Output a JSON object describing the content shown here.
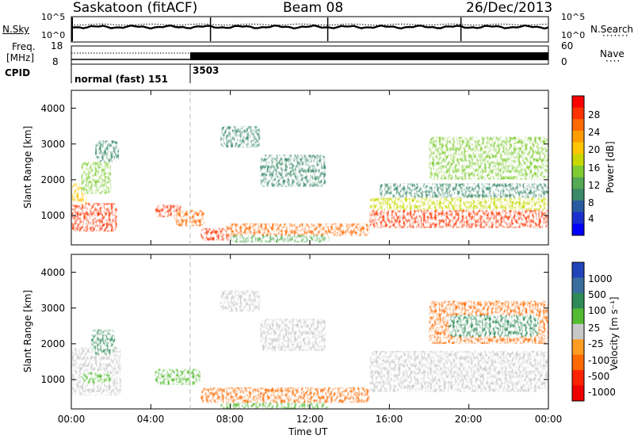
{
  "header": {
    "station": "Saskatoon (fitACF)",
    "beam": "Beam 08",
    "date": "26/Dec/2013"
  },
  "noise_panel": {
    "left_label": "N.Sky",
    "left_ticks": [
      "10^5",
      "10^0"
    ],
    "right_label": "N.Search",
    "right_ticks": [
      "10^5",
      "10^0"
    ]
  },
  "freq_panel": {
    "left_label_1": "Freq.",
    "left_label_2": "[MHz]",
    "left_ticks": [
      "18",
      "8"
    ],
    "right_label": "Nave",
    "right_ticks": [
      "60",
      "0"
    ]
  },
  "cpid": {
    "label": "CPID",
    "segments": [
      {
        "name": "normal (fast) 151",
        "start_hour": 0,
        "end_hour": 6
      },
      {
        "name": "3503",
        "start_hour": 6,
        "end_hour": 24
      }
    ]
  },
  "power_colorbar": {
    "label": "Power [dB]",
    "tick_labels": [
      "28",
      "24",
      "20",
      "16",
      "12",
      "8",
      "4"
    ],
    "colors": [
      "#ff0000",
      "#ff3300",
      "#ff6a00",
      "#ff9d00",
      "#ffc600",
      "#c8d800",
      "#7fcc33",
      "#55aa55",
      "#3a8a6a",
      "#2a5aa0",
      "#1a2fd0",
      "#0000ff"
    ]
  },
  "velocity_colorbar": {
    "label": "Velocity [m s⁻¹]",
    "tick_labels": [
      "1000",
      "500",
      "100",
      "25",
      "-25",
      "-100",
      "-500",
      "-1000"
    ],
    "colors": [
      "#2244bb",
      "#3a6e9e",
      "#2e8b57",
      "#55bb33",
      "#c8c8c8",
      "#ff9c22",
      "#ff6a00",
      "#ff2200",
      "#ee0000"
    ]
  },
  "axes": {
    "xlabel": "Time UT",
    "ylabel": "Slant Range [km]",
    "x_ticks": [
      "00:00",
      "04:00",
      "08:00",
      "12:00",
      "16:00",
      "20:00",
      "00:00"
    ],
    "y_ticks": [
      "1000",
      "2000",
      "3000",
      "4000"
    ]
  },
  "chart_data": [
    {
      "type": "heatmap",
      "title": "",
      "quantity": "Power",
      "units": "dB",
      "xlabel": "Time UT",
      "ylabel": "Slant Range [km]",
      "xlim_hours": [
        0,
        24
      ],
      "ylim_km": [
        180,
        4500
      ],
      "clim": [
        0,
        30
      ],
      "patches": [
        {
          "t0": 0.0,
          "t1": 2.3,
          "r0": 550,
          "r1": 1350,
          "value": 27
        },
        {
          "t0": 0.0,
          "t1": 0.8,
          "r0": 1300,
          "r1": 1900,
          "value": 18
        },
        {
          "t0": 0.5,
          "t1": 2.0,
          "r0": 1600,
          "r1": 2500,
          "value": 13
        },
        {
          "t0": 1.2,
          "t1": 2.4,
          "r0": 2500,
          "r1": 3100,
          "value": 8
        },
        {
          "t0": 4.2,
          "t1": 5.6,
          "r0": 950,
          "r1": 1300,
          "value": 26
        },
        {
          "t0": 5.2,
          "t1": 6.7,
          "r0": 700,
          "r1": 1150,
          "value": 24
        },
        {
          "t0": 6.5,
          "t1": 8.6,
          "r0": 300,
          "r1": 650,
          "value": 25
        },
        {
          "t0": 7.8,
          "t1": 15.0,
          "r0": 420,
          "r1": 780,
          "value": 24
        },
        {
          "t0": 8.0,
          "t1": 13.0,
          "r0": 250,
          "r1": 450,
          "value": 12
        },
        {
          "t0": 7.5,
          "t1": 9.5,
          "r0": 2900,
          "r1": 3500,
          "value": 8
        },
        {
          "t0": 9.5,
          "t1": 12.8,
          "r0": 1800,
          "r1": 2700,
          "value": 10
        },
        {
          "t0": 15.0,
          "t1": 24.0,
          "r0": 650,
          "r1": 1200,
          "value": 26
        },
        {
          "t0": 15.0,
          "t1": 24.0,
          "r0": 1150,
          "r1": 1500,
          "value": 16
        },
        {
          "t0": 15.5,
          "t1": 24.0,
          "r0": 1500,
          "r1": 1900,
          "value": 9
        },
        {
          "t0": 18.0,
          "t1": 24.0,
          "r0": 2000,
          "r1": 3200,
          "value": 15
        }
      ]
    },
    {
      "type": "heatmap",
      "title": "",
      "quantity": "Velocity",
      "units": "m s-1",
      "xlabel": "Time UT",
      "ylabel": "Slant Range [km]",
      "xlim_hours": [
        0,
        24
      ],
      "ylim_km": [
        180,
        4500
      ],
      "clim": [
        -1000,
        1000
      ],
      "patches": [
        {
          "t0": 0.0,
          "t1": 2.5,
          "r0": 550,
          "r1": 1900,
          "value": 0
        },
        {
          "t0": 0.5,
          "t1": 2.0,
          "r0": 900,
          "r1": 1200,
          "value": 80
        },
        {
          "t0": 1.0,
          "t1": 2.2,
          "r0": 1700,
          "r1": 2400,
          "value": 300
        },
        {
          "t0": 4.2,
          "t1": 6.5,
          "r0": 850,
          "r1": 1300,
          "value": 90
        },
        {
          "t0": 6.5,
          "t1": 15.0,
          "r0": 350,
          "r1": 780,
          "value": -120
        },
        {
          "t0": 7.5,
          "t1": 13.0,
          "r0": 180,
          "r1": 350,
          "value": 60
        },
        {
          "t0": 7.5,
          "t1": 9.5,
          "r0": 2900,
          "r1": 3500,
          "value": 0
        },
        {
          "t0": 9.5,
          "t1": 12.8,
          "r0": 1800,
          "r1": 2700,
          "value": 0
        },
        {
          "t0": 15.0,
          "t1": 24.0,
          "r0": 650,
          "r1": 1800,
          "value": 0
        },
        {
          "t0": 18.0,
          "t1": 24.0,
          "r0": 2000,
          "r1": 3200,
          "value": -300
        },
        {
          "t0": 19.0,
          "t1": 23.5,
          "r0": 2200,
          "r1": 2800,
          "value": 150
        }
      ]
    }
  ]
}
